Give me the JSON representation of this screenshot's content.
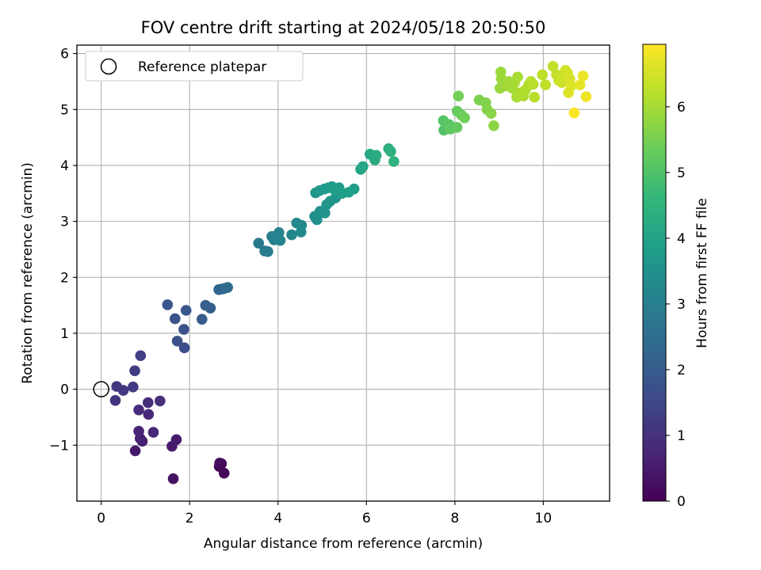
{
  "chart_data": {
    "type": "scatter",
    "title": "FOV centre drift starting at 2024/05/18 20:50:50",
    "xlabel": "Angular distance from reference (arcmin)",
    "ylabel": "Rotation from reference (arcmin)",
    "xlim": [
      -0.55,
      11.5
    ],
    "ylim": [
      -2.0,
      6.15
    ],
    "xticks": [
      0,
      2,
      4,
      6,
      8,
      10
    ],
    "yticks": [
      -1,
      0,
      1,
      2,
      3,
      4,
      5,
      6
    ],
    "grid": true,
    "legend": {
      "position": "top-left",
      "entries": [
        "Reference platepar"
      ]
    },
    "reference_point": {
      "x": 0,
      "y": 0
    },
    "colorbar": {
      "label": "Hours from first FF file",
      "range": [
        0,
        6.95
      ],
      "ticks": [
        0,
        1,
        2,
        3,
        4,
        5,
        6
      ],
      "colormap": "viridis",
      "colors": [
        "#440154",
        "#482878",
        "#3e4989",
        "#31688e",
        "#26828e",
        "#1f9e89",
        "#35b779",
        "#6ece58",
        "#b5de2b",
        "#fde725"
      ]
    },
    "points": [
      {
        "x": 2.67,
        "y": -1.38,
        "t": 0.05
      },
      {
        "x": 2.72,
        "y": -1.33,
        "t": 0.1
      },
      {
        "x": 2.78,
        "y": -1.5,
        "t": 0.15
      },
      {
        "x": 2.68,
        "y": -1.32,
        "t": 0.2
      },
      {
        "x": 1.63,
        "y": -1.6,
        "t": 0.35
      },
      {
        "x": 0.77,
        "y": -1.1,
        "t": 0.45
      },
      {
        "x": 1.6,
        "y": -1.02,
        "t": 0.5
      },
      {
        "x": 1.7,
        "y": -0.9,
        "t": 0.55
      },
      {
        "x": 0.93,
        "y": -0.93,
        "t": 0.6
      },
      {
        "x": 0.88,
        "y": -0.88,
        "t": 0.65
      },
      {
        "x": 0.85,
        "y": -0.75,
        "t": 0.7
      },
      {
        "x": 1.18,
        "y": -0.77,
        "t": 0.75
      },
      {
        "x": 1.07,
        "y": -0.45,
        "t": 0.8
      },
      {
        "x": 0.85,
        "y": -0.37,
        "t": 0.85
      },
      {
        "x": 1.06,
        "y": -0.24,
        "t": 0.9
      },
      {
        "x": 1.33,
        "y": -0.21,
        "t": 0.95
      },
      {
        "x": 0.32,
        "y": -0.2,
        "t": 1.05
      },
      {
        "x": 0.5,
        "y": -0.02,
        "t": 1.1
      },
      {
        "x": 0.35,
        "y": 0.05,
        "t": 1.15
      },
      {
        "x": 0.72,
        "y": 0.04,
        "t": 1.2
      },
      {
        "x": 0.76,
        "y": 0.33,
        "t": 1.25
      },
      {
        "x": 0.89,
        "y": 0.6,
        "t": 1.3
      },
      {
        "x": 1.88,
        "y": 0.74,
        "t": 1.65
      },
      {
        "x": 1.72,
        "y": 0.86,
        "t": 1.7
      },
      {
        "x": 1.87,
        "y": 1.07,
        "t": 1.75
      },
      {
        "x": 1.67,
        "y": 1.26,
        "t": 1.8
      },
      {
        "x": 1.5,
        "y": 1.51,
        "t": 1.85
      },
      {
        "x": 1.92,
        "y": 1.41,
        "t": 1.9
      },
      {
        "x": 2.28,
        "y": 1.25,
        "t": 2.0
      },
      {
        "x": 2.47,
        "y": 1.45,
        "t": 2.05
      },
      {
        "x": 2.36,
        "y": 1.5,
        "t": 2.1
      },
      {
        "x": 2.66,
        "y": 1.78,
        "t": 2.25
      },
      {
        "x": 2.72,
        "y": 1.79,
        "t": 2.3
      },
      {
        "x": 2.78,
        "y": 1.8,
        "t": 2.35
      },
      {
        "x": 2.86,
        "y": 1.82,
        "t": 2.4
      },
      {
        "x": 3.56,
        "y": 2.61,
        "t": 2.8
      },
      {
        "x": 3.7,
        "y": 2.47,
        "t": 2.85
      },
      {
        "x": 3.77,
        "y": 2.46,
        "t": 2.9
      },
      {
        "x": 3.86,
        "y": 2.73,
        "t": 2.95
      },
      {
        "x": 3.91,
        "y": 2.67,
        "t": 3.0
      },
      {
        "x": 3.96,
        "y": 2.7,
        "t": 3.05
      },
      {
        "x": 4.02,
        "y": 2.8,
        "t": 3.1
      },
      {
        "x": 4.05,
        "y": 2.66,
        "t": 3.15
      },
      {
        "x": 4.31,
        "y": 2.76,
        "t": 3.2
      },
      {
        "x": 4.42,
        "y": 2.97,
        "t": 3.25
      },
      {
        "x": 4.52,
        "y": 2.81,
        "t": 3.3
      },
      {
        "x": 4.53,
        "y": 2.93,
        "t": 3.35
      },
      {
        "x": 4.83,
        "y": 3.09,
        "t": 3.4
      },
      {
        "x": 4.88,
        "y": 3.03,
        "t": 3.45
      },
      {
        "x": 4.95,
        "y": 3.18,
        "t": 3.5
      },
      {
        "x": 5.06,
        "y": 3.15,
        "t": 3.55
      },
      {
        "x": 5.1,
        "y": 3.3,
        "t": 3.6
      },
      {
        "x": 5.18,
        "y": 3.36,
        "t": 3.62
      },
      {
        "x": 5.3,
        "y": 3.42,
        "t": 3.65
      },
      {
        "x": 4.85,
        "y": 3.51,
        "t": 3.68
      },
      {
        "x": 4.94,
        "y": 3.55,
        "t": 3.7
      },
      {
        "x": 5.05,
        "y": 3.58,
        "t": 3.72
      },
      {
        "x": 5.14,
        "y": 3.6,
        "t": 3.75
      },
      {
        "x": 5.22,
        "y": 3.62,
        "t": 3.78
      },
      {
        "x": 5.3,
        "y": 3.55,
        "t": 3.8
      },
      {
        "x": 5.38,
        "y": 3.6,
        "t": 3.82
      },
      {
        "x": 5.45,
        "y": 3.5,
        "t": 3.85
      },
      {
        "x": 5.6,
        "y": 3.52,
        "t": 3.87
      },
      {
        "x": 5.72,
        "y": 3.58,
        "t": 3.9
      },
      {
        "x": 5.87,
        "y": 3.93,
        "t": 4.05
      },
      {
        "x": 5.92,
        "y": 3.98,
        "t": 4.1
      },
      {
        "x": 6.08,
        "y": 4.2,
        "t": 4.15
      },
      {
        "x": 6.19,
        "y": 4.1,
        "t": 4.2
      },
      {
        "x": 6.22,
        "y": 4.18,
        "t": 4.25
      },
      {
        "x": 6.5,
        "y": 4.3,
        "t": 4.35
      },
      {
        "x": 6.55,
        "y": 4.25,
        "t": 4.4
      },
      {
        "x": 6.62,
        "y": 4.07,
        "t": 4.45
      },
      {
        "x": 7.75,
        "y": 4.63,
        "t": 5.05
      },
      {
        "x": 7.74,
        "y": 4.8,
        "t": 5.1
      },
      {
        "x": 7.87,
        "y": 4.73,
        "t": 5.15
      },
      {
        "x": 7.9,
        "y": 4.65,
        "t": 5.2
      },
      {
        "x": 8.05,
        "y": 4.68,
        "t": 5.25
      },
      {
        "x": 8.05,
        "y": 4.97,
        "t": 5.3
      },
      {
        "x": 8.15,
        "y": 4.9,
        "t": 5.35
      },
      {
        "x": 8.22,
        "y": 4.85,
        "t": 5.4
      },
      {
        "x": 8.08,
        "y": 5.24,
        "t": 5.45
      },
      {
        "x": 8.55,
        "y": 5.17,
        "t": 5.55
      },
      {
        "x": 8.7,
        "y": 5.12,
        "t": 5.6
      },
      {
        "x": 8.73,
        "y": 5.0,
        "t": 5.65
      },
      {
        "x": 8.82,
        "y": 4.93,
        "t": 5.7
      },
      {
        "x": 8.88,
        "y": 4.71,
        "t": 5.75
      },
      {
        "x": 9.02,
        "y": 5.38,
        "t": 5.85
      },
      {
        "x": 9.05,
        "y": 5.55,
        "t": 5.88
      },
      {
        "x": 9.04,
        "y": 5.67,
        "t": 5.9
      },
      {
        "x": 9.15,
        "y": 5.42,
        "t": 5.93
      },
      {
        "x": 9.22,
        "y": 5.5,
        "t": 5.95
      },
      {
        "x": 9.3,
        "y": 5.38,
        "t": 5.98
      },
      {
        "x": 9.35,
        "y": 5.48,
        "t": 6.0
      },
      {
        "x": 9.42,
        "y": 5.58,
        "t": 6.02
      },
      {
        "x": 9.4,
        "y": 5.22,
        "t": 6.05
      },
      {
        "x": 9.48,
        "y": 5.3,
        "t": 6.08
      },
      {
        "x": 9.55,
        "y": 5.24,
        "t": 6.1
      },
      {
        "x": 9.6,
        "y": 5.35,
        "t": 6.12
      },
      {
        "x": 9.67,
        "y": 5.44,
        "t": 6.15
      },
      {
        "x": 9.72,
        "y": 5.5,
        "t": 6.18
      },
      {
        "x": 9.8,
        "y": 5.22,
        "t": 6.2
      },
      {
        "x": 9.77,
        "y": 5.45,
        "t": 6.22
      },
      {
        "x": 9.98,
        "y": 5.62,
        "t": 6.25
      },
      {
        "x": 10.05,
        "y": 5.44,
        "t": 6.28
      },
      {
        "x": 10.22,
        "y": 5.77,
        "t": 6.32
      },
      {
        "x": 10.3,
        "y": 5.62,
        "t": 6.35
      },
      {
        "x": 10.35,
        "y": 5.52,
        "t": 6.38
      },
      {
        "x": 10.42,
        "y": 5.48,
        "t": 6.42
      },
      {
        "x": 10.47,
        "y": 5.58,
        "t": 6.45
      },
      {
        "x": 10.5,
        "y": 5.7,
        "t": 6.48
      },
      {
        "x": 10.55,
        "y": 5.65,
        "t": 6.5
      },
      {
        "x": 10.6,
        "y": 5.55,
        "t": 6.55
      },
      {
        "x": 10.63,
        "y": 5.42,
        "t": 6.6
      },
      {
        "x": 10.57,
        "y": 5.3,
        "t": 6.62
      },
      {
        "x": 10.83,
        "y": 5.44,
        "t": 6.7
      },
      {
        "x": 10.9,
        "y": 5.6,
        "t": 6.75
      },
      {
        "x": 10.97,
        "y": 5.23,
        "t": 6.8
      },
      {
        "x": 10.7,
        "y": 4.94,
        "t": 6.9
      }
    ]
  }
}
